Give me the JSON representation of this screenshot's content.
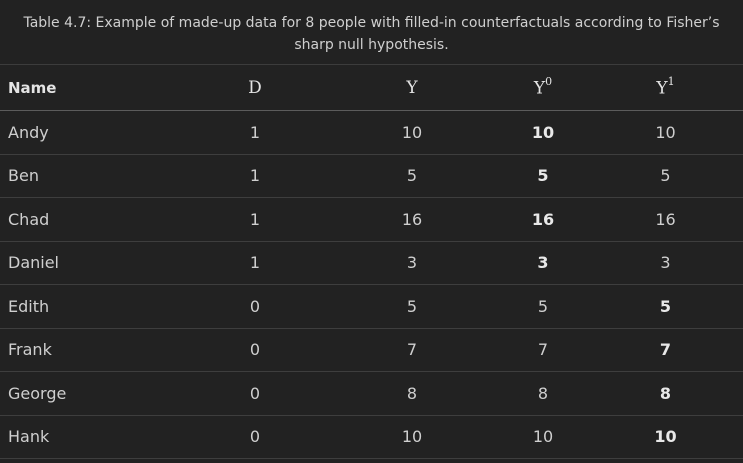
{
  "caption": "Table 4.7: Example of made-up data for 8 people with filled-in counterfactuals according to Fisher’s sharp null hypothesis.",
  "headers": {
    "name": "Name",
    "d": "D",
    "y": "Y",
    "y0_base": "Y",
    "y0_sup": "0",
    "y1_base": "Y",
    "y1_sup": "1"
  },
  "rows": [
    {
      "name": "Andy",
      "d": "1",
      "y": "10",
      "y0": "10",
      "y1": "10",
      "bold": "y0"
    },
    {
      "name": "Ben",
      "d": "1",
      "y": "5",
      "y0": "5",
      "y1": "5",
      "bold": "y0"
    },
    {
      "name": "Chad",
      "d": "1",
      "y": "16",
      "y0": "16",
      "y1": "16",
      "bold": "y0"
    },
    {
      "name": "Daniel",
      "d": "1",
      "y": "3",
      "y0": "3",
      "y1": "3",
      "bold": "y0"
    },
    {
      "name": "Edith",
      "d": "0",
      "y": "5",
      "y0": "5",
      "y1": "5",
      "bold": "y1"
    },
    {
      "name": "Frank",
      "d": "0",
      "y": "7",
      "y0": "7",
      "y1": "7",
      "bold": "y1"
    },
    {
      "name": "George",
      "d": "0",
      "y": "8",
      "y0": "8",
      "y1": "8",
      "bold": "y1"
    },
    {
      "name": "Hank",
      "d": "0",
      "y": "10",
      "y0": "10",
      "y1": "10",
      "bold": "y1"
    }
  ]
}
